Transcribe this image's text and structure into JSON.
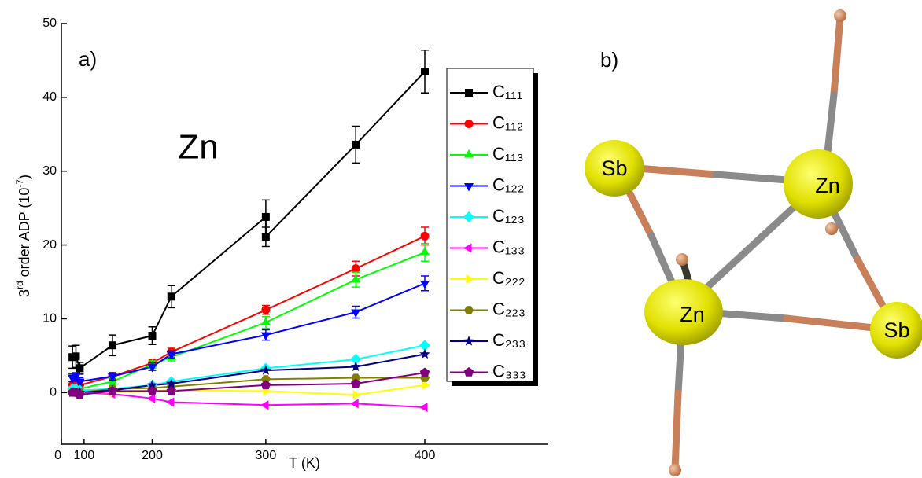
{
  "chart_data": {
    "type": "line",
    "panel_label": "a)",
    "annotation": "Zn",
    "x_label": "T (K)",
    "y_label": [
      "3",
      "rd",
      " order ADP (10",
      "-7",
      ")"
    ],
    "xscale": "square",
    "xlim": [
      0,
      463
    ],
    "xticks": [
      0,
      100,
      200,
      300,
      400
    ],
    "ylim": [
      -7,
      50
    ],
    "yticks": [
      0,
      10,
      20,
      30,
      40,
      50
    ],
    "series": [
      {
        "name": "C₁₁₁",
        "color": "#000000",
        "marker": "square",
        "x": [
          70,
          80,
          90,
          150,
          200,
          220,
          300,
          300,
          360,
          400
        ],
        "values": [
          4.8,
          4.9,
          3.3,
          6.4,
          7.7,
          13.0,
          23.8,
          21.1,
          33.6,
          43.5
        ],
        "errors": [
          1.5,
          1.5,
          0.8,
          1.4,
          1.2,
          1.5,
          2.3,
          1.3,
          2.5,
          2.9
        ]
      },
      {
        "name": "C₁₁₂",
        "color": "#ff0000",
        "marker": "circle",
        "x": [
          70,
          80,
          90,
          150,
          200,
          220,
          300,
          360,
          400
        ],
        "values": [
          1.0,
          1.5,
          1.0,
          2.2,
          4.0,
          5.5,
          11.2,
          16.8,
          21.2
        ],
        "errors": [
          0.5,
          0.5,
          0.5,
          0.5,
          0.5,
          0.5,
          0.6,
          1.0,
          1.2
        ]
      },
      {
        "name": "C₁₁₃",
        "color": "#00ff00",
        "marker": "triangle-up",
        "x": [
          70,
          80,
          90,
          150,
          200,
          220,
          300,
          360,
          400
        ],
        "values": [
          0.3,
          0.5,
          0.5,
          1.5,
          3.8,
          4.8,
          9.5,
          15.3,
          19.0
        ],
        "errors": [
          0.5,
          0.5,
          0.5,
          0.5,
          0.5,
          0.5,
          0.8,
          1.0,
          1.2
        ]
      },
      {
        "name": "C₁₂₂",
        "color": "#0000ff",
        "marker": "triangle-down",
        "x": [
          70,
          80,
          90,
          150,
          200,
          220,
          300,
          360,
          400
        ],
        "values": [
          2.0,
          2.2,
          1.5,
          2.2,
          3.5,
          5.2,
          7.8,
          10.9,
          14.8
        ],
        "errors": [
          0.5,
          0.5,
          0.5,
          0.5,
          0.5,
          0.5,
          0.7,
          0.8,
          1.0
        ]
      },
      {
        "name": "C₁₂₃",
        "color": "#00ffff",
        "marker": "diamond",
        "x": [
          70,
          80,
          90,
          150,
          200,
          220,
          300,
          360,
          400
        ],
        "values": [
          0.5,
          0.5,
          0.3,
          0.5,
          1.0,
          1.5,
          3.3,
          4.5,
          6.4
        ]
      },
      {
        "name": "C₁₃₃",
        "color": "#ff00ff",
        "marker": "triangle-left",
        "x": [
          70,
          80,
          90,
          150,
          200,
          220,
          300,
          360,
          400
        ],
        "values": [
          0,
          0,
          0,
          -0.2,
          -0.8,
          -1.3,
          -1.7,
          -1.5,
          -2.0
        ]
      },
      {
        "name": "C₂₂₂",
        "color": "#ffff00",
        "marker": "triangle-right",
        "x": [
          70,
          80,
          90,
          150,
          200,
          220,
          300,
          360,
          400
        ],
        "values": [
          0,
          0,
          0,
          0,
          0.2,
          0.3,
          0.2,
          -0.3,
          1.0
        ]
      },
      {
        "name": "C₂₂₃",
        "color": "#808000",
        "marker": "hexagon",
        "x": [
          70,
          80,
          90,
          150,
          200,
          220,
          300,
          360,
          400
        ],
        "values": [
          0,
          0,
          0,
          0.5,
          0.6,
          0.8,
          1.8,
          2.0,
          2.0
        ]
      },
      {
        "name": "C₂₃₃",
        "color": "#000080",
        "marker": "star",
        "x": [
          70,
          80,
          90,
          150,
          200,
          220,
          300,
          360,
          400
        ],
        "values": [
          0,
          0,
          0,
          0.3,
          1.0,
          1.2,
          3.0,
          3.5,
          5.2
        ]
      },
      {
        "name": "C₃₃₃",
        "color": "#800080",
        "marker": "pentagon",
        "x": [
          70,
          80,
          90,
          150,
          200,
          220,
          300,
          360,
          400
        ],
        "values": [
          0,
          0,
          -0.3,
          0.2,
          0.2,
          0.2,
          1.0,
          1.2,
          2.7
        ]
      }
    ]
  },
  "diagram": {
    "label": "b)",
    "atoms": [
      {
        "label": "Sb"
      },
      {
        "label": "Zn"
      },
      {
        "label": "Zn"
      },
      {
        "label": "Sb"
      }
    ]
  }
}
